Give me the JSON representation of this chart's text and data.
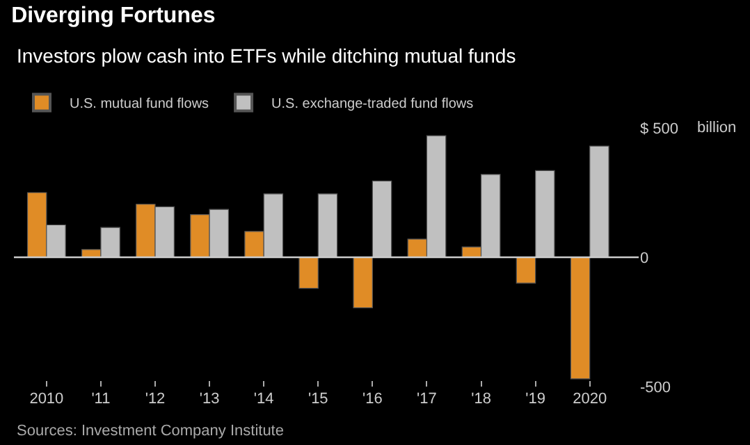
{
  "chart_data": {
    "type": "bar",
    "title": "Diverging Fortunes",
    "subtitle": "Investors plow cash into ETFs while ditching mutual funds",
    "categories": [
      "2010",
      "'11",
      "'12",
      "'13",
      "'14",
      "'15",
      "'16",
      "'17",
      "'18",
      "'19",
      "2020"
    ],
    "series": [
      {
        "name": "U.S. mutual fund flows",
        "color": "#e08c26",
        "values": [
          250,
          30,
          205,
          165,
          100,
          -120,
          -195,
          70,
          40,
          -100,
          -470
        ]
      },
      {
        "name": "U.S. exchange-traded fund flows",
        "color": "#c0c0c0",
        "values": [
          125,
          115,
          195,
          185,
          245,
          245,
          295,
          470,
          320,
          335,
          430
        ]
      }
    ],
    "ylim": [
      -500,
      500
    ],
    "yticks": [
      {
        "value": 500,
        "label": "$ 500"
      },
      0,
      -500
    ],
    "ylabel": "billion",
    "ref_lines": [
      {
        "axis": "y",
        "value": 0,
        "color": "#cccccc"
      }
    ],
    "grid": false,
    "legend": "top left",
    "annotations": [
      "Sources: Investment Company Institute"
    ]
  }
}
